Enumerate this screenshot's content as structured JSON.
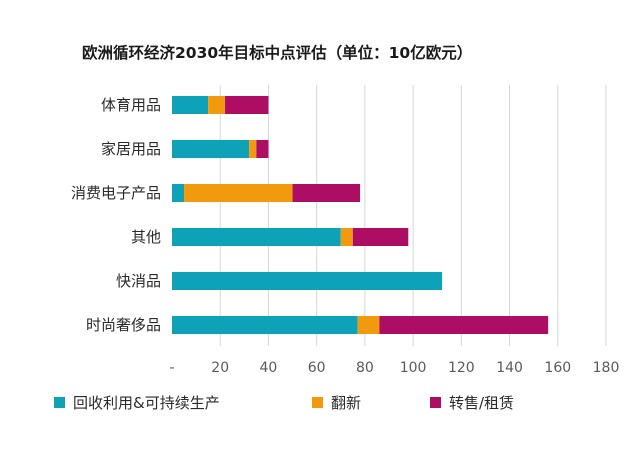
{
  "chart_data": {
    "type": "bar",
    "orientation": "horizontal",
    "stacked": true,
    "title": "欧洲循环经济2030年目标中点评估（单位：10亿欧元）",
    "categories": [
      "体育用品",
      "家居用品",
      "消费电子产品",
      "其他",
      "快消品",
      "时尚奢侈品"
    ],
    "series": [
      {
        "name": "回收利用&可持续生产",
        "color": "#0ea2b8",
        "values": [
          15,
          32,
          5,
          70,
          112,
          77
        ]
      },
      {
        "name": "翻新",
        "color": "#f29a0e",
        "values": [
          7,
          3,
          45,
          5,
          0,
          9
        ]
      },
      {
        "name": "转售/租赁",
        "color": "#ad0d62",
        "values": [
          18,
          5,
          28,
          23,
          0,
          70
        ]
      }
    ],
    "xticks": [
      "-",
      "20",
      "40",
      "60",
      "80",
      "100",
      "120",
      "140",
      "160",
      "180"
    ],
    "xlim": [
      0,
      180
    ],
    "grid": true,
    "legend_position": "bottom"
  }
}
